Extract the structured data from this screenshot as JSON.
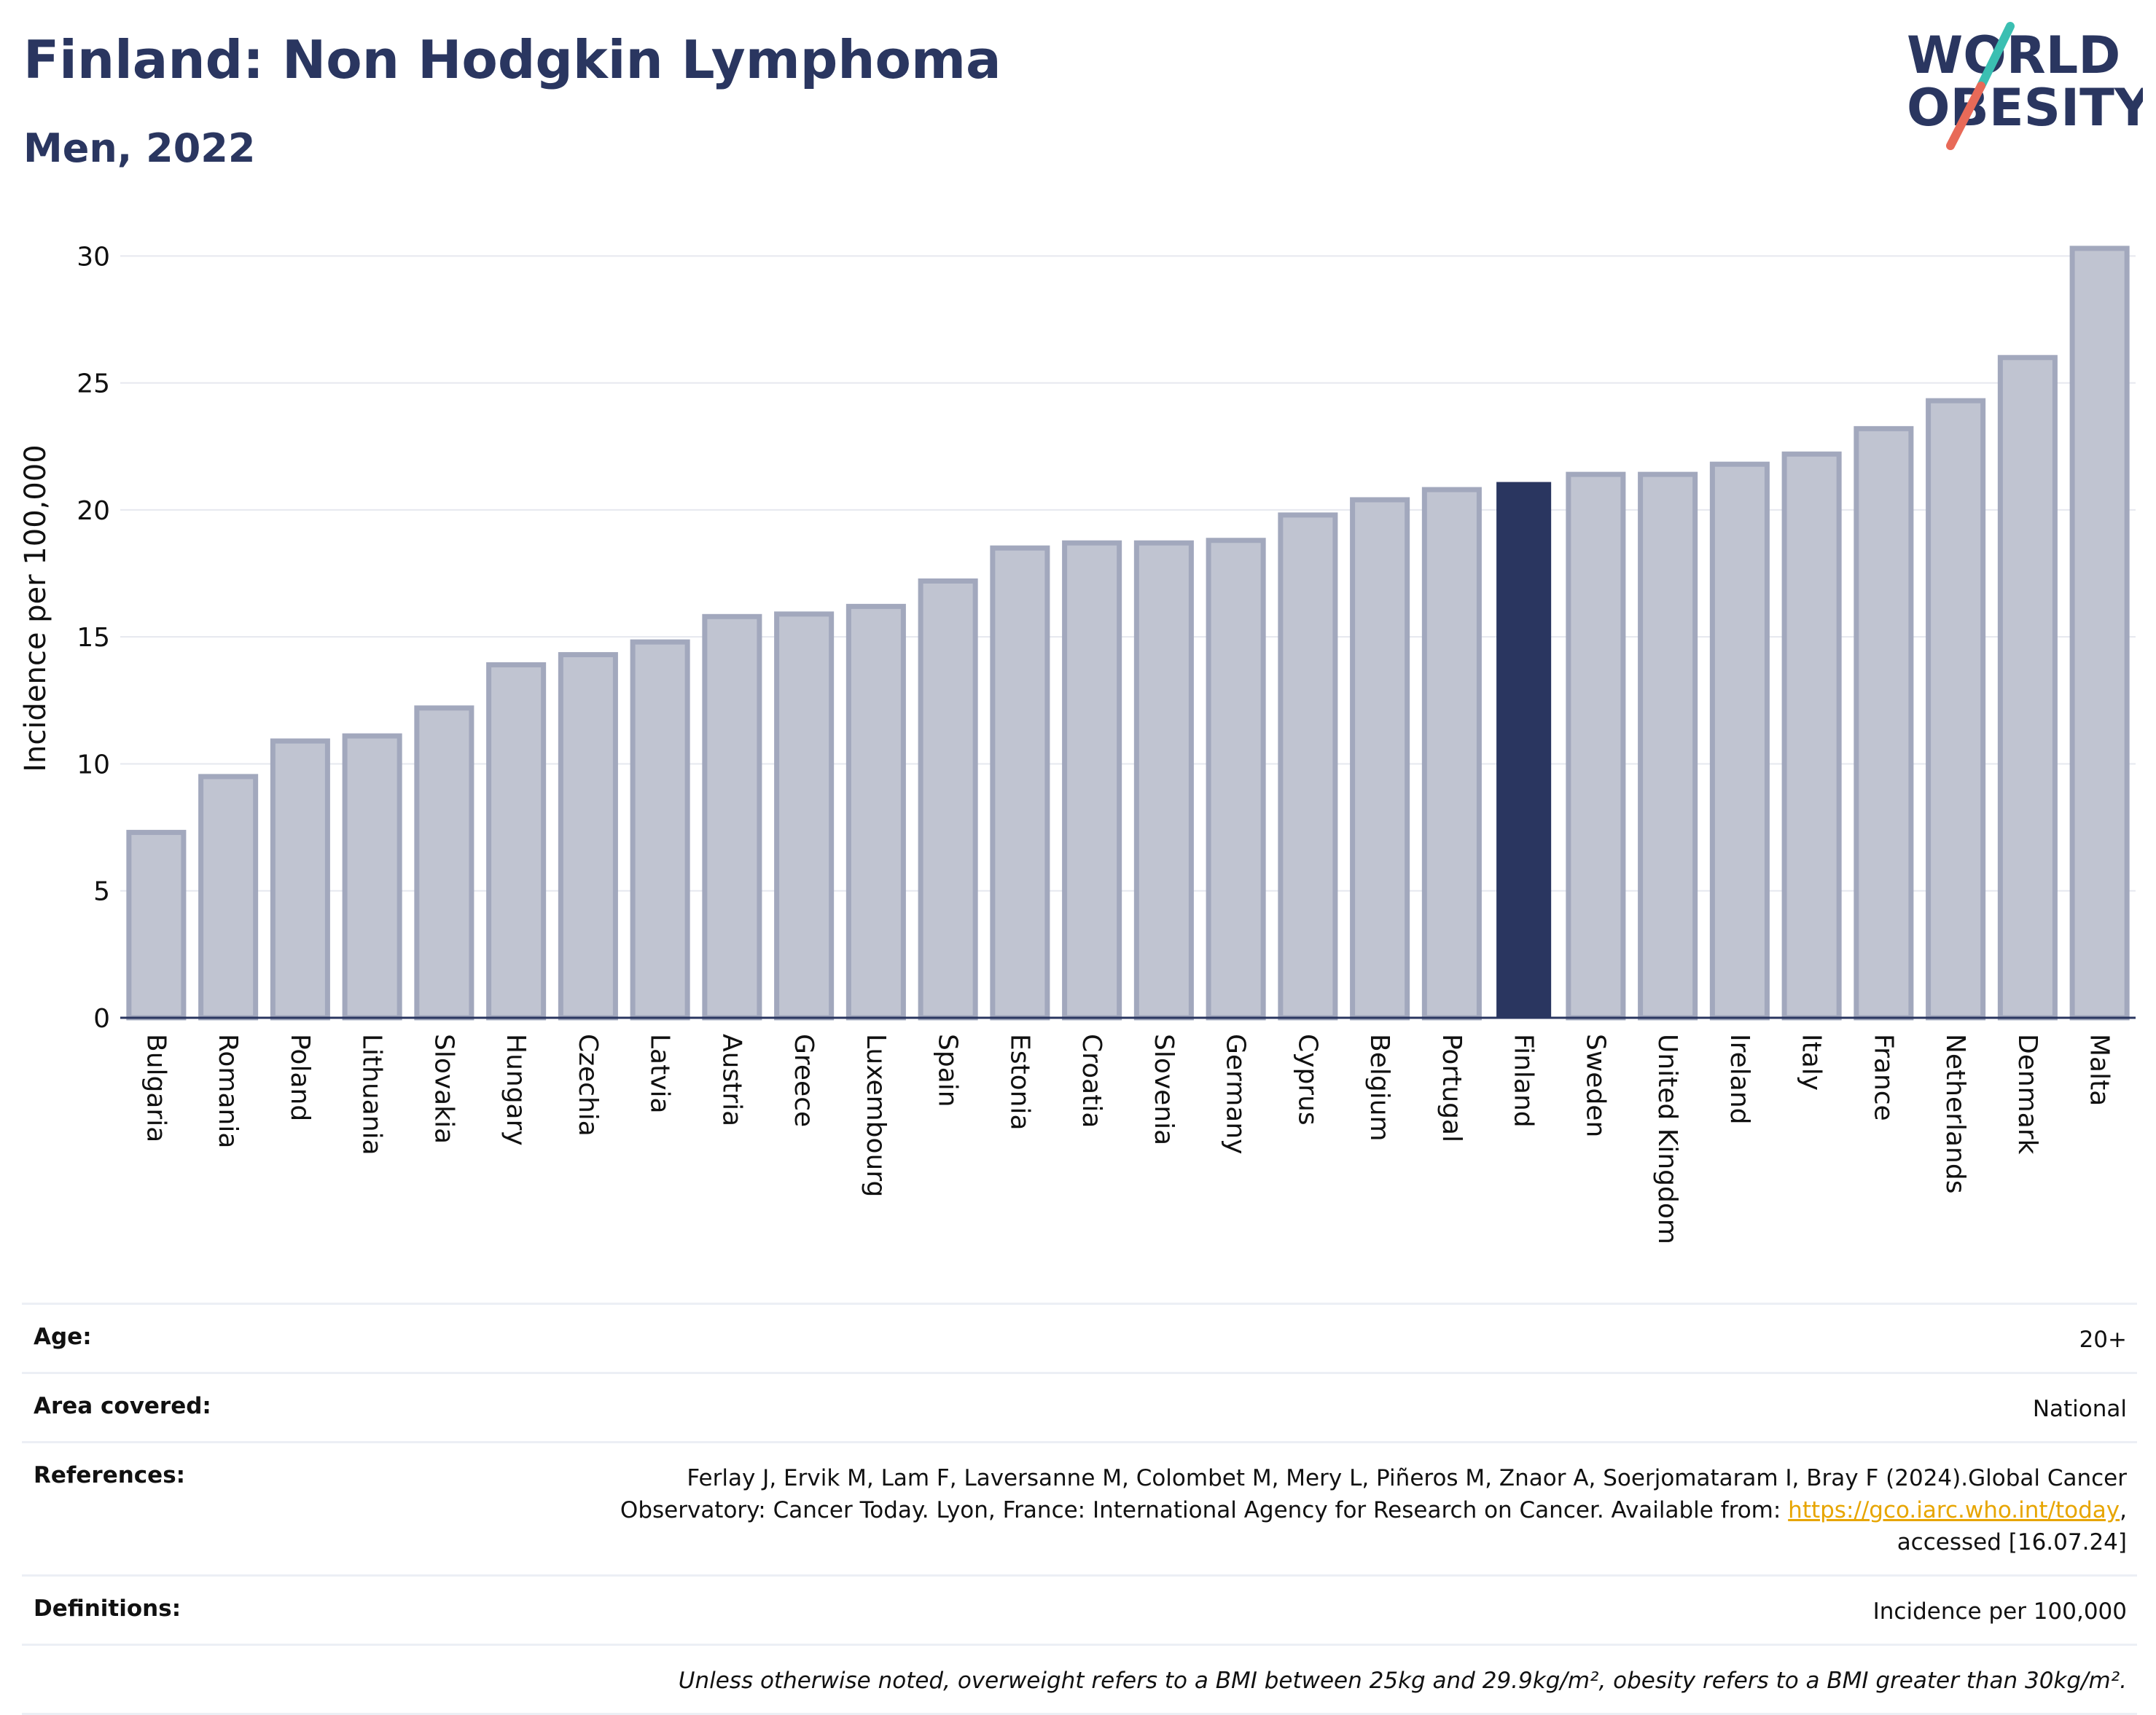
{
  "header": {
    "title": "Finland: Non Hodgkin Lymphoma",
    "subtitle": "Men, 2022"
  },
  "logo": {
    "line1": "WORLD",
    "line2": "OBESITY",
    "colors": {
      "text": "#2a3660",
      "slash_top": "#3bbfb2",
      "slash_bottom": "#e86a58"
    }
  },
  "chart_data": {
    "type": "bar",
    "categories": [
      "Bulgaria",
      "Romania",
      "Poland",
      "Lithuania",
      "Slovakia",
      "Hungary",
      "Czechia",
      "Latvia",
      "Austria",
      "Greece",
      "Luxembourg",
      "Spain",
      "Estonia",
      "Croatia",
      "Slovenia",
      "Germany",
      "Cyprus",
      "Belgium",
      "Portugal",
      "Finland",
      "Sweden",
      "United Kingdom",
      "Ireland",
      "Italy",
      "France",
      "Netherlands",
      "Denmark",
      "Malta"
    ],
    "values": [
      7.3,
      9.5,
      10.9,
      11.1,
      12.2,
      13.9,
      14.3,
      14.8,
      15.8,
      15.9,
      16.2,
      17.2,
      18.5,
      18.7,
      18.7,
      18.8,
      19.8,
      20.4,
      20.8,
      21.1,
      21.4,
      21.4,
      21.8,
      22.2,
      23.2,
      24.3,
      26.0,
      30.3
    ],
    "highlight": "Finland",
    "xlabel": "",
    "ylabel": "Incidence per 100,000",
    "ylim": [
      0,
      30.9
    ],
    "yticks": [
      0,
      5,
      10,
      15,
      20,
      25,
      30
    ],
    "grid": true,
    "colors": {
      "bar": "#c0c4d1",
      "bar_border": "#a2a8bd",
      "highlight": "#2a3660",
      "grid": "#e6e8ef",
      "axis": "#2a3660"
    }
  },
  "info": {
    "age_label": "Age:",
    "age_value": "20+",
    "area_label": "Area covered:",
    "area_value": "National",
    "references_label": "References:",
    "references_text": "Ferlay J, Ervik M, Lam F, Laversanne M, Colombet M, Mery L, Piñeros M, Znaor A, Soerjomataram I, Bray F (2024).Global Cancer Observatory: Cancer Today. Lyon, France: International Agency for Research on Cancer. Available from: ",
    "references_link": "https://gco.iarc.who.int/today",
    "references_suffix": ", accessed [16.07.24]",
    "definitions_label": "Definitions:",
    "definitions_value": "Incidence per 100,000",
    "note": "Unless otherwise noted, overweight refers to a BMI between 25kg and 29.9kg/m², obesity refers to a BMI greater than 30kg/m²."
  }
}
